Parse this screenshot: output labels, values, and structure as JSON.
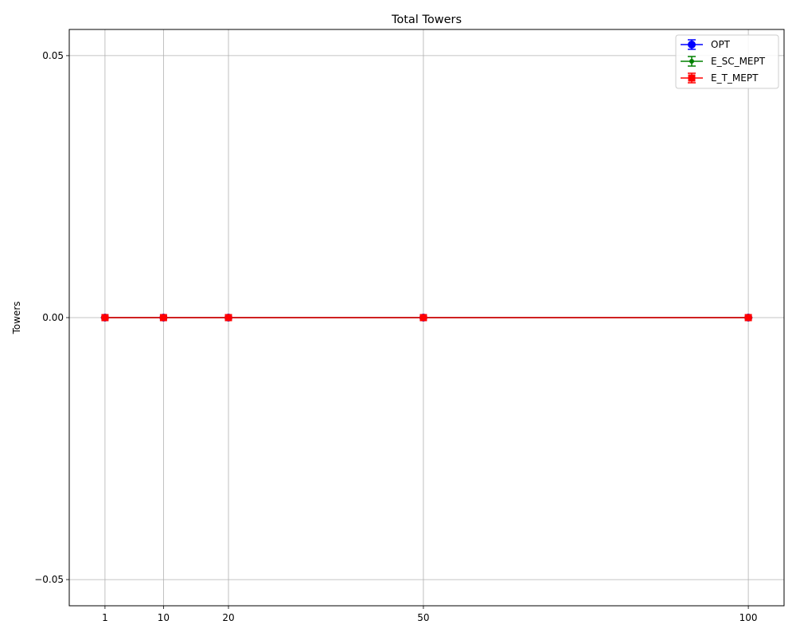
{
  "chart_data": {
    "type": "line",
    "title": "Total Towers",
    "xlabel": "",
    "ylabel": "Towers",
    "x": [
      1,
      10,
      20,
      50,
      100
    ],
    "x_tick_labels": [
      "1",
      "10",
      "20",
      "50",
      "100"
    ],
    "xlim": [
      -4.5,
      105.5
    ],
    "y_ticks": [
      0.05,
      0.0,
      -0.05
    ],
    "y_tick_labels": [
      "0.05",
      "0.00",
      "−0.05"
    ],
    "ylim": [
      -0.055,
      0.055
    ],
    "grid": true,
    "legend_position": "top-right",
    "series": [
      {
        "name": "OPT",
        "values": [
          0,
          0,
          0,
          0,
          0
        ],
        "errors": [
          0,
          0,
          0,
          0,
          0
        ],
        "color": "#0000ff",
        "marker": "circle"
      },
      {
        "name": "E_SC_MEPT",
        "values": [
          0,
          0,
          0,
          0,
          0
        ],
        "errors": [
          0,
          0,
          0,
          0,
          0
        ],
        "color": "#008000",
        "marker": "dot"
      },
      {
        "name": "E_T_MEPT",
        "values": [
          0,
          0,
          0,
          0,
          0
        ],
        "errors": [
          0,
          0,
          0,
          0,
          0
        ],
        "color": "#ff0000",
        "marker": "square"
      }
    ]
  }
}
